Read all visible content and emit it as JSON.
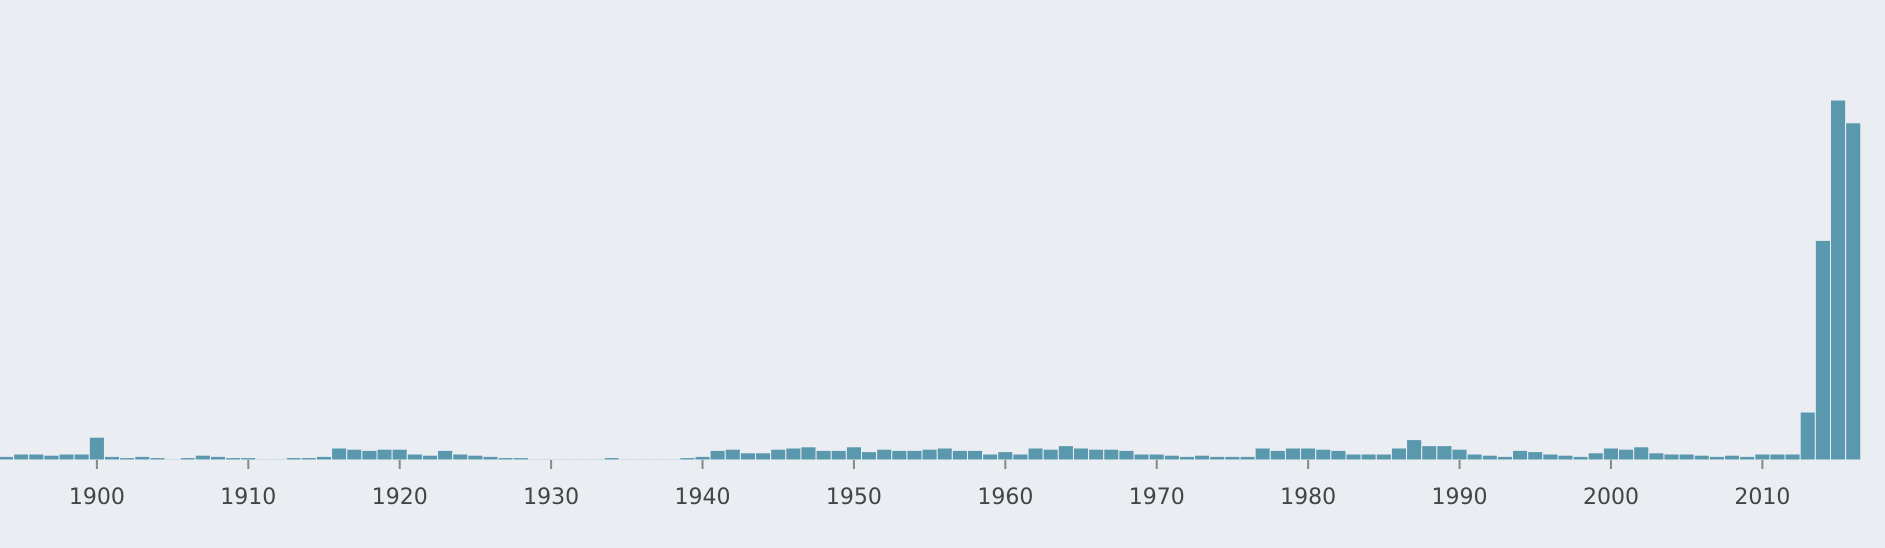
{
  "chart_data": {
    "type": "bar",
    "x": [
      1894,
      1895,
      1896,
      1897,
      1898,
      1899,
      1900,
      1901,
      1902,
      1903,
      1904,
      1905,
      1906,
      1907,
      1908,
      1909,
      1910,
      1911,
      1912,
      1913,
      1914,
      1915,
      1916,
      1917,
      1918,
      1919,
      1920,
      1921,
      1922,
      1923,
      1924,
      1925,
      1926,
      1927,
      1928,
      1929,
      1930,
      1931,
      1932,
      1933,
      1934,
      1935,
      1936,
      1937,
      1938,
      1939,
      1940,
      1941,
      1942,
      1943,
      1944,
      1945,
      1946,
      1947,
      1948,
      1949,
      1950,
      1951,
      1952,
      1953,
      1954,
      1955,
      1956,
      1957,
      1958,
      1959,
      1960,
      1961,
      1962,
      1963,
      1964,
      1965,
      1966,
      1967,
      1968,
      1969,
      1970,
      1971,
      1972,
      1973,
      1974,
      1975,
      1976,
      1977,
      1978,
      1979,
      1980,
      1981,
      1982,
      1983,
      1984,
      1985,
      1986,
      1987,
      1988,
      1989,
      1990,
      1991,
      1992,
      1993,
      1994,
      1995,
      1996,
      1997,
      1998,
      1999,
      2000,
      2001,
      2002,
      2003,
      2004,
      2005,
      2006,
      2007,
      2008,
      2009,
      2010,
      2011,
      2012,
      2013,
      2014,
      2015,
      2016
    ],
    "values": [
      3,
      5,
      5,
      4,
      5,
      5,
      19,
      3,
      2,
      3,
      2,
      1,
      2,
      4,
      3,
      2,
      2,
      1,
      1,
      2,
      2,
      3,
      10,
      9,
      8,
      9,
      9,
      5,
      4,
      8,
      5,
      4,
      3,
      2,
      2,
      1,
      1,
      1,
      1,
      1,
      2,
      1,
      1,
      1,
      1,
      2,
      3,
      8,
      9,
      6,
      6,
      9,
      10,
      11,
      8,
      8,
      11,
      7,
      9,
      8,
      8,
      9,
      10,
      8,
      8,
      5,
      7,
      5,
      10,
      9,
      12,
      10,
      9,
      9,
      8,
      5,
      5,
      4,
      3,
      4,
      3,
      3,
      3,
      10,
      8,
      10,
      10,
      9,
      8,
      5,
      5,
      5,
      10,
      17,
      12,
      12,
      9,
      5,
      4,
      3,
      8,
      7,
      5,
      4,
      3,
      6,
      10,
      9,
      11,
      6,
      5,
      5,
      4,
      3,
      4,
      3,
      5,
      5,
      5,
      40,
      183,
      300,
      281
    ],
    "color": "#5a99ad",
    "xlim": [
      1893.6,
      2018.1
    ],
    "xticks": [
      1900,
      1910,
      1920,
      1930,
      1940,
      1950,
      1960,
      1970,
      1980,
      1990,
      2000,
      2010
    ]
  }
}
